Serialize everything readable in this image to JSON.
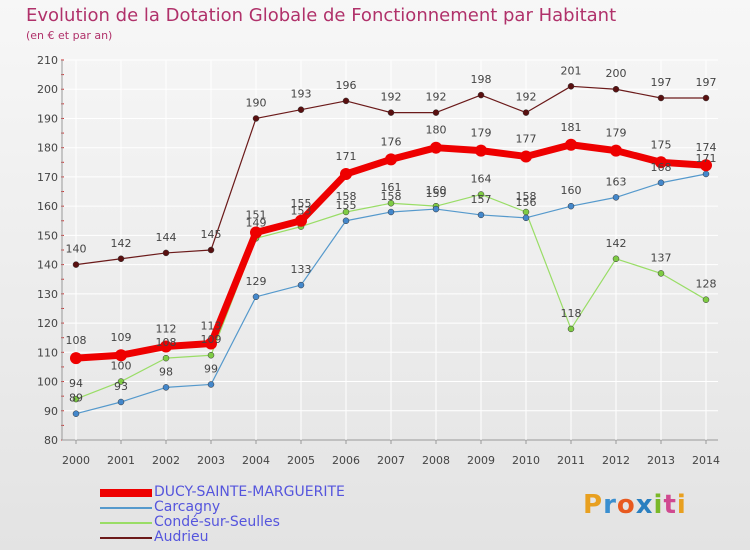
{
  "header": {
    "title": "Evolution de la Dotation Globale de Fonctionnement par Habitant",
    "subtitle": "(en € et par an)"
  },
  "logo": {
    "text": "Proxiti",
    "letters": [
      "P",
      "r",
      "o",
      "x",
      "i",
      "t",
      "i"
    ],
    "colors": [
      "#e8a020",
      "#3a8fd0",
      "#e85a20",
      "#2a7fc0",
      "#7ab828",
      "#d04a90",
      "#e8a020"
    ]
  },
  "colors": {
    "title": "#b0316a",
    "grid": "#ffffff",
    "axis_tick": "#cc3333",
    "label_text": "#444444",
    "legend_text": "#5555dd"
  },
  "chart_data": {
    "type": "line",
    "title": "Evolution de la Dotation Globale de Fonctionnement par Habitant",
    "subtitle": "(en € et par an)",
    "xlabel": "",
    "ylabel": "",
    "ylim": [
      80,
      210
    ],
    "yticks": [
      80,
      90,
      100,
      110,
      120,
      130,
      140,
      150,
      160,
      170,
      180,
      190,
      200,
      210
    ],
    "categories": [
      "2000",
      "2001",
      "2002",
      "2003",
      "2004",
      "2005",
      "2006",
      "2007",
      "2008",
      "2009",
      "2010",
      "2011",
      "2012",
      "2013",
      "2014"
    ],
    "grid": true,
    "legend_position": "bottom-left",
    "series": [
      {
        "name": "Audrieu",
        "color": "#6b1a1a",
        "marker": "#5a1010",
        "width": 1.2,
        "radius": 3,
        "values": [
          140,
          142,
          144,
          145,
          190,
          193,
          196,
          192,
          192,
          198,
          192,
          201,
          200,
          197,
          197
        ]
      },
      {
        "name": "Condé-sur-Seulles",
        "color": "#99dd66",
        "marker": "#7fcc44",
        "width": 1.2,
        "radius": 3,
        "values": [
          94,
          100,
          108,
          109,
          149,
          153,
          158,
          161,
          160,
          164,
          158,
          118,
          142,
          137,
          128
        ]
      },
      {
        "name": "Carcagny",
        "color": "#5599cc",
        "marker": "#4488cc",
        "width": 1.2,
        "radius": 3,
        "values": [
          89,
          93,
          98,
          99,
          129,
          133,
          155,
          158,
          159,
          157,
          156,
          160,
          163,
          168,
          171
        ]
      },
      {
        "name": "DUCY-SAINTE-MARGUERITE",
        "color": "#ee0000",
        "marker": "#ee0000",
        "width": 7,
        "radius": 6,
        "values": [
          108,
          109,
          112,
          113,
          151,
          155,
          171,
          176,
          180,
          179,
          177,
          181,
          179,
          175,
          174
        ]
      }
    ]
  },
  "legend": [
    {
      "name": "DUCY-SAINTE-MARGUERITE",
      "color": "#ee0000",
      "thickness": 8
    },
    {
      "name": "Carcagny",
      "color": "#5599cc",
      "thickness": 2
    },
    {
      "name": "Condé-sur-Seulles",
      "color": "#99dd66",
      "thickness": 2
    },
    {
      "name": "Audrieu",
      "color": "#6b1a1a",
      "thickness": 2
    }
  ]
}
